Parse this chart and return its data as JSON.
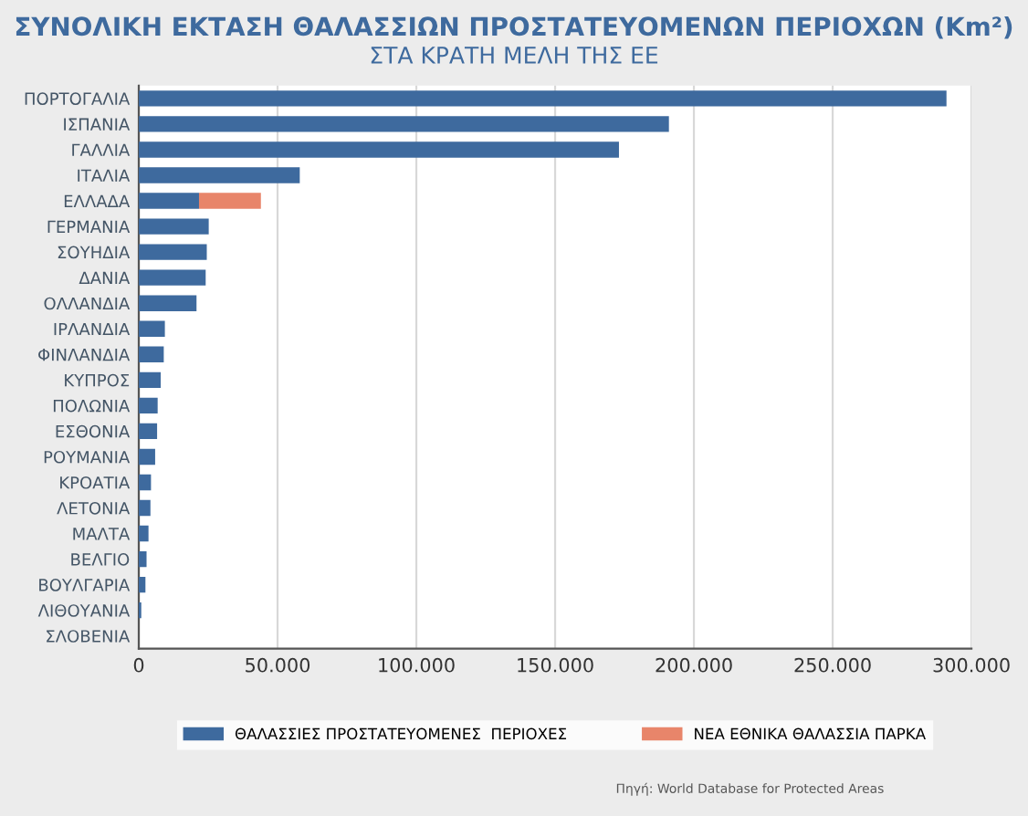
{
  "chart_data": {
    "type": "bar",
    "orientation": "horizontal",
    "stacked": true,
    "title": "ΣΥΝΟΛΙΚΗ ΕΚΤΑΣΗ ΘΑΛΑΣΣΙΩΝ ΠΡΟΣΤΑΤΕΥΟΜΕΝΩΝ ΠΕΡΙΟΧΩΝ (Km²)",
    "subtitle": "ΣΤΑ ΚΡΑΤΗ ΜΕΛΗ ΤΗΣ ΕΕ",
    "categories": [
      "ΠΟΡΤΟΓΑΛΙΑ",
      "ΙΣΠΑΝΙΑ",
      "ΓΑΛΛΙΑ",
      "ΙΤΑΛΙΑ",
      "ΕΛΛΑΔΑ",
      "ΓΕΡΜΑΝΙΑ",
      "ΣΟΥΗΔΙΑ",
      "ΔΑΝΙΑ",
      "ΟΛΛΑΝΔΙΑ",
      "ΙΡΛΑΝΔΙΑ",
      "ΦΙΝΛΑΝΔΙΑ",
      "ΚΥΠΡΟΣ",
      "ΠΟΛΩΝΙΑ",
      "ΕΣΘΟΝΙΑ",
      "ΡΟΥΜΑΝΙΑ",
      "ΚΡΟΑΤΙΑ",
      "ΛΕΤΟΝΙΑ",
      "ΜΑΛΤΑ",
      "ΒΕΛΓΙΟ",
      "ΒΟΥΛΓΑΡΙΑ",
      "ΛΙΘΟΥΑΝΙΑ",
      "ΣΛΟΒΕΝΙΑ"
    ],
    "series": [
      {
        "name": "ΘΑΛΑΣΣΙΕΣ ΠΡΟΣΤΑΤΕΥΟΜΕΝΕΣ  ΠΕΡΙΟΧΕΣ",
        "color": "#3e6a9e",
        "values": [
          291000,
          191000,
          173000,
          58000,
          21700,
          25200,
          24500,
          24100,
          20800,
          9400,
          9000,
          7900,
          6800,
          6600,
          5900,
          4400,
          4200,
          3500,
          2800,
          2400,
          900,
          null
        ]
      },
      {
        "name": "ΝΕΑ ΕΘΝΙΚΑ ΘΑΛΑΣΣΙΑ ΠΑΡΚΑ",
        "color": "#e8856a",
        "values": [
          null,
          null,
          null,
          null,
          22300,
          null,
          null,
          null,
          null,
          null,
          null,
          null,
          null,
          null,
          null,
          null,
          null,
          null,
          null,
          null,
          null,
          null
        ]
      }
    ],
    "xlim": [
      0,
      300000
    ],
    "xticks": [
      0,
      {
        "value": 50000,
        "label": "50.000"
      },
      {
        "value": 100000,
        "label": "100.000"
      },
      {
        "value": 150000,
        "label": "150.000"
      },
      {
        "value": 200000,
        "label": "200.000"
      },
      {
        "value": 250000,
        "label": "250.000"
      },
      {
        "value": 300000,
        "label": "300.000"
      }
    ],
    "grid": "x",
    "legend": "bottom",
    "annotations": [
      "Πηγή: World Database for Protected Areas"
    ]
  }
}
